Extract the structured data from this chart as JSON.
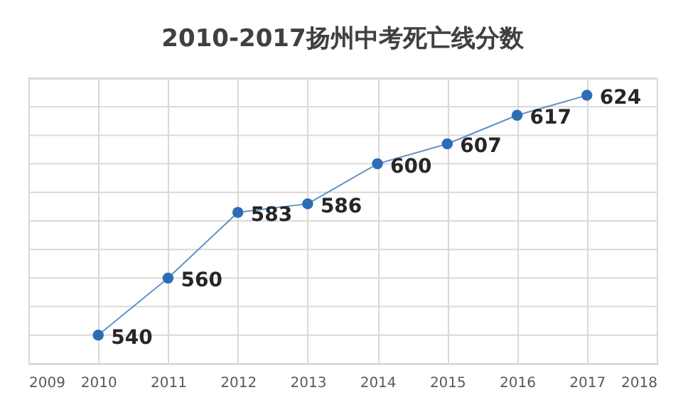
{
  "chart_data": {
    "type": "line",
    "title": "2010-2017扬州中考死亡线分数",
    "x": [
      2010,
      2011,
      2012,
      2013,
      2014,
      2015,
      2016,
      2017
    ],
    "series": [
      {
        "color": "#2e6db5",
        "values": [
          540,
          560,
          583,
          586,
          600,
          607,
          617,
          624
        ]
      }
    ],
    "xlim": [
      2009,
      2018
    ],
    "xticks": [
      2009,
      2010,
      2011,
      2012,
      2013,
      2014,
      2015,
      2016,
      2017,
      2018
    ],
    "ylim": [
      530,
      630
    ],
    "yticks": [
      {
        "value": 530,
        "label": null
      },
      {
        "value": 540,
        "label": null
      },
      {
        "value": 550,
        "label": null
      },
      {
        "value": 560,
        "label": null
      },
      {
        "value": 570,
        "label": null
      },
      {
        "value": 580,
        "label": null
      },
      {
        "value": 590,
        "label": null
      },
      {
        "value": 600,
        "label": null
      },
      {
        "value": 610,
        "label": null
      },
      {
        "value": 620,
        "label": null
      },
      {
        "value": 630,
        "label": null
      }
    ],
    "tick_labels": "x",
    "grid": true,
    "marker": "circle",
    "line_style": "solid",
    "data_labels": true
  }
}
